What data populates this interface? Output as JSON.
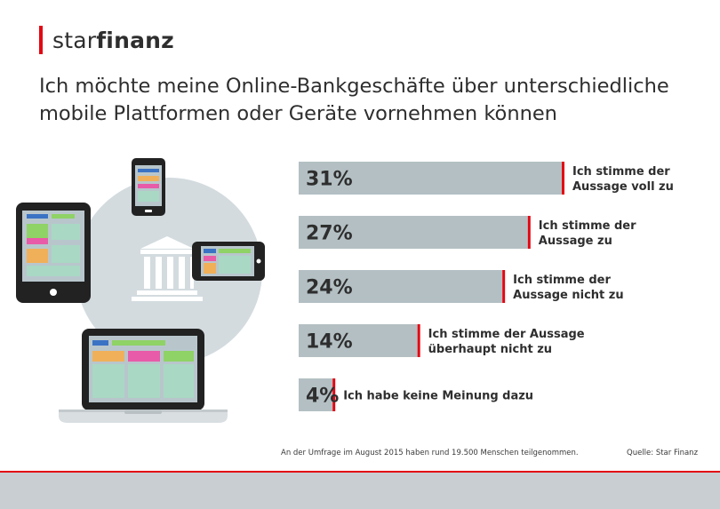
{
  "brand": {
    "logo_light": "star",
    "logo_bold": "finanz",
    "accent_color": "#e30613"
  },
  "title_lines": [
    "Ich möchte meine Online-Bankgeschäfte über unterschiedliche",
    "mobile Plattformen oder Geräte vornehmen können"
  ],
  "illustration_icons": [
    "bank-icon",
    "tablet-icon",
    "smartphone-icon",
    "landscape-phone-icon",
    "laptop-icon"
  ],
  "chart_data": {
    "type": "bar",
    "orientation": "horizontal",
    "categories": [
      [
        "Ich stimme der",
        "Aussage voll zu"
      ],
      [
        "Ich stimme der",
        "Aussage zu"
      ],
      [
        "Ich stimme der",
        "Aussage nicht zu"
      ],
      [
        "Ich stimme der Aussage",
        "überhaupt nicht zu"
      ],
      [
        "Ich habe keine Meinung dazu"
      ]
    ],
    "values": [
      31,
      27,
      24,
      14,
      4
    ],
    "value_labels": [
      "31%",
      "27%",
      "24%",
      "14%",
      "4%"
    ],
    "unit": "%",
    "bar_color": "#b3bfc3",
    "marker_color": "#e30613"
  },
  "footnote": "An der Umfrage im August 2015 haben rund 19.500 Menschen teilgenommen.",
  "source": "Quelle: Star Finanz"
}
